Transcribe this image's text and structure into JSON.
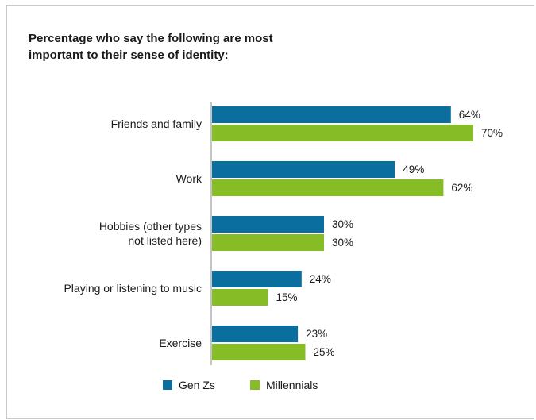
{
  "title_line1": "Percentage who say the following are most",
  "title_line2": "important to their sense of identity:",
  "chart_data": {
    "type": "bar",
    "orientation": "horizontal",
    "categories": [
      [
        "Friends and family"
      ],
      [
        "Work"
      ],
      [
        "Hobbies (other types",
        "not listed here)"
      ],
      [
        "Playing or listening to music"
      ],
      [
        "Exercise"
      ]
    ],
    "series": [
      {
        "name": "Gen Zs",
        "color": "#0a6e9e",
        "values": [
          64,
          49,
          30,
          24,
          23
        ]
      },
      {
        "name": "Millennials",
        "color": "#86bc25",
        "values": [
          70,
          62,
          30,
          15,
          25
        ]
      }
    ],
    "value_suffix": "%",
    "legend_position": "bottom",
    "xlim": [
      0,
      100
    ],
    "grid": false
  }
}
